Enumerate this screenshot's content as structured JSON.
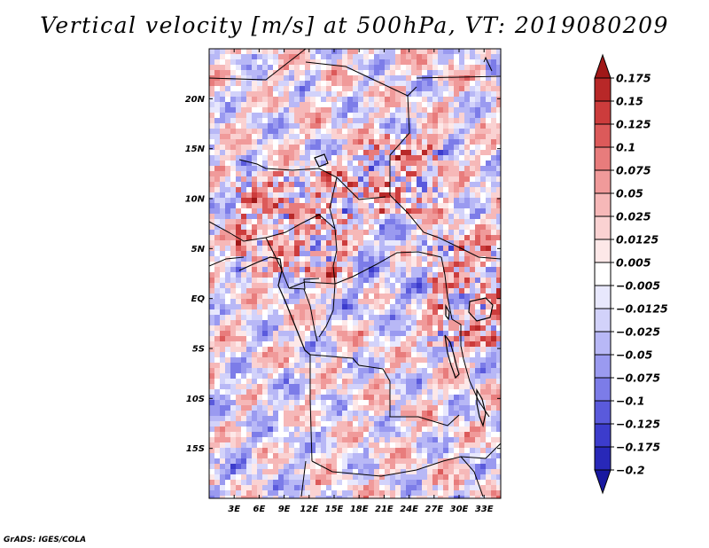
{
  "title": "Vertical velocity [m/s] at 500hPa, VT: 2019080209",
  "credit": "GrADS: IGES/COLA",
  "map": {
    "field": "Vertical velocity",
    "units": "m/s",
    "level": "500hPa",
    "valid_time": "2019080209",
    "lon_range": [
      0,
      35
    ],
    "lat_range": [
      -20,
      25
    ],
    "x_ticks": [
      {
        "value": 3,
        "label": "3E"
      },
      {
        "value": 6,
        "label": "6E"
      },
      {
        "value": 9,
        "label": "9E"
      },
      {
        "value": 12,
        "label": "12E"
      },
      {
        "value": 15,
        "label": "15E"
      },
      {
        "value": 18,
        "label": "18E"
      },
      {
        "value": 21,
        "label": "21E"
      },
      {
        "value": 24,
        "label": "24E"
      },
      {
        "value": 27,
        "label": "27E"
      },
      {
        "value": 30,
        "label": "30E"
      },
      {
        "value": 33,
        "label": "33E"
      }
    ],
    "y_ticks": [
      {
        "value": 20,
        "label": "20N"
      },
      {
        "value": 15,
        "label": "15N"
      },
      {
        "value": 10,
        "label": "10N"
      },
      {
        "value": 5,
        "label": "5N"
      },
      {
        "value": 0,
        "label": "EQ"
      },
      {
        "value": -5,
        "label": "5S"
      },
      {
        "value": -10,
        "label": "10S"
      },
      {
        "value": -15,
        "label": "15S"
      }
    ]
  },
  "colorbar": {
    "levels": [
      "0.175",
      "0.15",
      "0.125",
      "0.1",
      "0.075",
      "0.05",
      "0.025",
      "0.0125",
      "0.005",
      "−0.005",
      "−0.0125",
      "−0.025",
      "−0.05",
      "−0.075",
      "−0.1",
      "−0.125",
      "−0.175",
      "−0.2"
    ],
    "colors": [
      "#a01818",
      "#b82828",
      "#cc3c3c",
      "#dc5a5a",
      "#e87c7c",
      "#f09a9a",
      "#f6b8b8",
      "#fad2d2",
      "#fde8e8",
      "#ffffff",
      "#e8e8fd",
      "#d2d2fa",
      "#b8b8f6",
      "#9a9af0",
      "#7c7ce8",
      "#5a5adc",
      "#3c3ccc",
      "#2828b8",
      "#1818a0"
    ]
  }
}
